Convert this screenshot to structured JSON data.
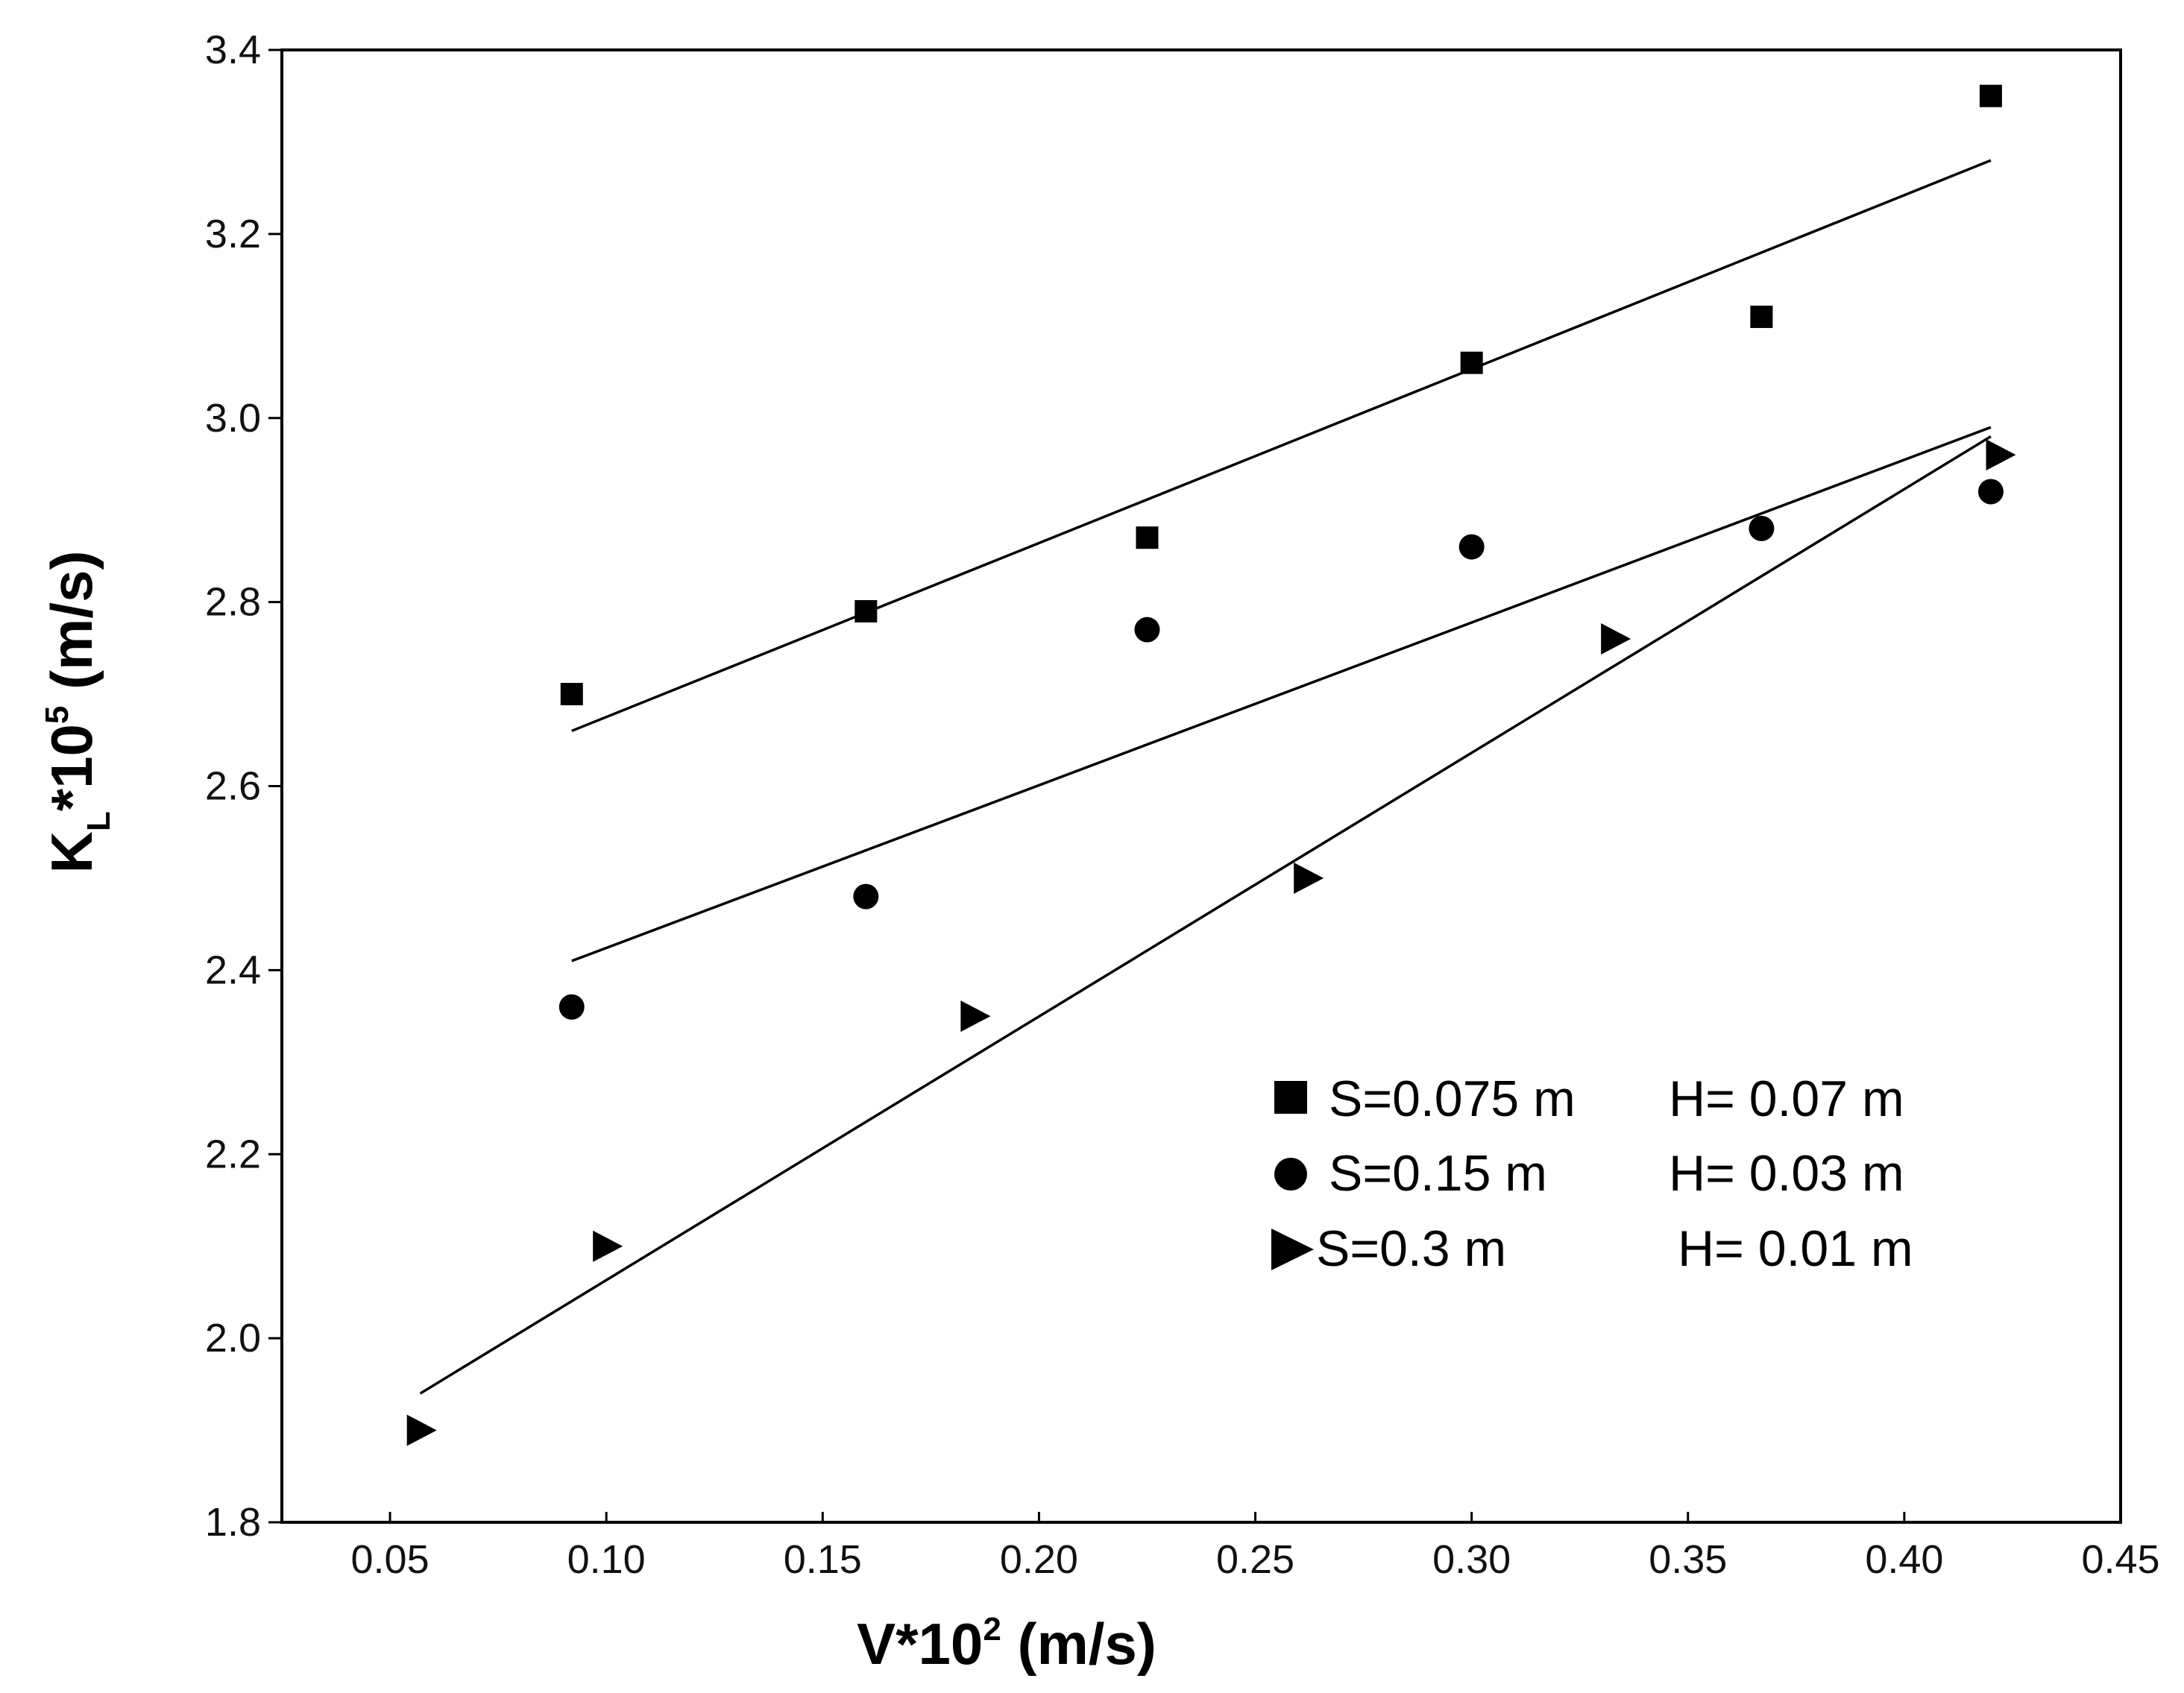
{
  "chart_data": {
    "type": "scatter",
    "title": "",
    "xlabel": "V*10",
    "xlabel_sup": "2",
    "xlabel_unit": " (m/s)",
    "ylabel": "K",
    "ylabel_sub": "L",
    "ylabel_mid": "*10",
    "ylabel_sup": "5",
    "ylabel_unit": " (m/s)",
    "xlim": [
      0.025,
      0.45
    ],
    "ylim": [
      1.8,
      3.4
    ],
    "xticks": [
      0.05,
      0.1,
      0.15,
      0.2,
      0.25,
      0.3,
      0.35,
      0.4,
      0.45
    ],
    "xtick_labels": [
      "0.05",
      "0.10",
      "0.15",
      "0.20",
      "0.25",
      "0.30",
      "0.35",
      "0.40",
      "0.45"
    ],
    "yticks": [
      1.8,
      2.0,
      2.2,
      2.4,
      2.6,
      2.8,
      3.0,
      3.2,
      3.4
    ],
    "ytick_labels": [
      "1.8",
      "2.0",
      "2.2",
      "2.4",
      "2.6",
      "2.8",
      "3.0",
      "3.2",
      "3.4"
    ],
    "grid": false,
    "legend_position": "bottom-right",
    "series": [
      {
        "name": "S=0.075 m  H= 0.07 m",
        "label_s": "S=0.075 m",
        "label_h": "H= 0.07 m",
        "marker": "square",
        "x": [
          0.092,
          0.16,
          0.225,
          0.3,
          0.367,
          0.42
        ],
        "y": [
          2.7,
          2.79,
          2.87,
          3.06,
          3.11,
          3.35
        ],
        "fit": {
          "x": [
            0.092,
            0.42
          ],
          "y": [
            2.66,
            3.28
          ]
        }
      },
      {
        "name": "S=0.15 m    H= 0.03 m",
        "label_s": "S=0.15 m",
        "label_h": "H= 0.03 m",
        "marker": "circle",
        "x": [
          0.092,
          0.16,
          0.225,
          0.3,
          0.367,
          0.42
        ],
        "y": [
          2.36,
          2.48,
          2.77,
          2.86,
          2.88,
          2.92
        ],
        "fit": {
          "x": [
            0.092,
            0.42
          ],
          "y": [
            2.41,
            2.99
          ]
        }
      },
      {
        "name": "S=0.3 m       H= 0.01 m",
        "label_s": "S=0.3 m",
        "label_h": "H= 0.01 m",
        "marker": "triangle-right",
        "x": [
          0.057,
          0.1,
          0.185,
          0.262,
          0.333,
          0.422
        ],
        "y": [
          1.9,
          2.1,
          2.35,
          2.5,
          2.76,
          2.96
        ],
        "fit": {
          "x": [
            0.057,
            0.42
          ],
          "y": [
            1.94,
            2.98
          ]
        }
      }
    ]
  }
}
